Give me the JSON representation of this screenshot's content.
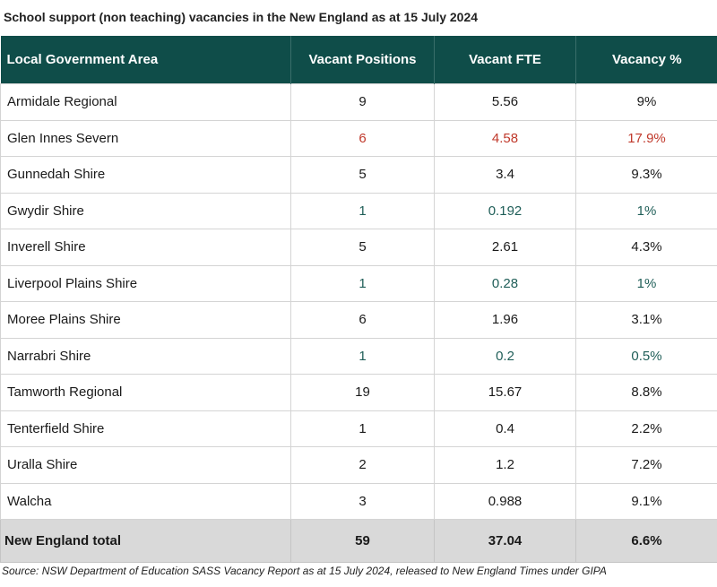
{
  "title": "School support (non teaching) vacancies in the New England as at 15 July 2024",
  "table": {
    "headers": [
      "Local Government Area",
      "Vacant Positions",
      "Vacant FTE",
      "Vacancy %"
    ],
    "rows": [
      {
        "area": "Armidale Regional",
        "positions": "9",
        "fte": "5.56",
        "pct": "9%",
        "highlight": "none"
      },
      {
        "area": "Glen Innes Severn",
        "positions": "6",
        "fte": "4.58",
        "pct": "17.9%",
        "highlight": "high"
      },
      {
        "area": "Gunnedah Shire",
        "positions": "5",
        "fte": "3.4",
        "pct": "9.3%",
        "highlight": "none"
      },
      {
        "area": "Gwydir Shire",
        "positions": "1",
        "fte": "0.192",
        "pct": "1%",
        "highlight": "low"
      },
      {
        "area": "Inverell Shire",
        "positions": "5",
        "fte": "2.61",
        "pct": "4.3%",
        "highlight": "none"
      },
      {
        "area": "Liverpool Plains Shire",
        "positions": "1",
        "fte": "0.28",
        "pct": "1%",
        "highlight": "low"
      },
      {
        "area": "Moree Plains Shire",
        "positions": "6",
        "fte": "1.96",
        "pct": "3.1%",
        "highlight": "none"
      },
      {
        "area": "Narrabri Shire",
        "positions": "1",
        "fte": "0.2",
        "pct": "0.5%",
        "highlight": "low"
      },
      {
        "area": "Tamworth Regional",
        "positions": "19",
        "fte": "15.67",
        "pct": "8.8%",
        "highlight": "none"
      },
      {
        "area": "Tenterfield Shire",
        "positions": "1",
        "fte": "0.4",
        "pct": "2.2%",
        "highlight": "none"
      },
      {
        "area": "Uralla Shire",
        "positions": "2",
        "fte": "1.2",
        "pct": "7.2%",
        "highlight": "none"
      },
      {
        "area": "Walcha",
        "positions": "3",
        "fte": "0.988",
        "pct": "9.1%",
        "highlight": "none"
      }
    ],
    "total": {
      "area": "New England total",
      "positions": "59",
      "fte": "37.04",
      "pct": "6.6%"
    }
  },
  "colors": {
    "header_bg": "#0f4d49",
    "header_text": "#ffffff",
    "high_value": "#c0392b",
    "low_value": "#1f5e58",
    "total_bg": "#d9d9d9"
  },
  "source": "Source: NSW  Department of Education SASS Vacancy Report  as at 15 July 2024, released to New England Times under GIPA"
}
